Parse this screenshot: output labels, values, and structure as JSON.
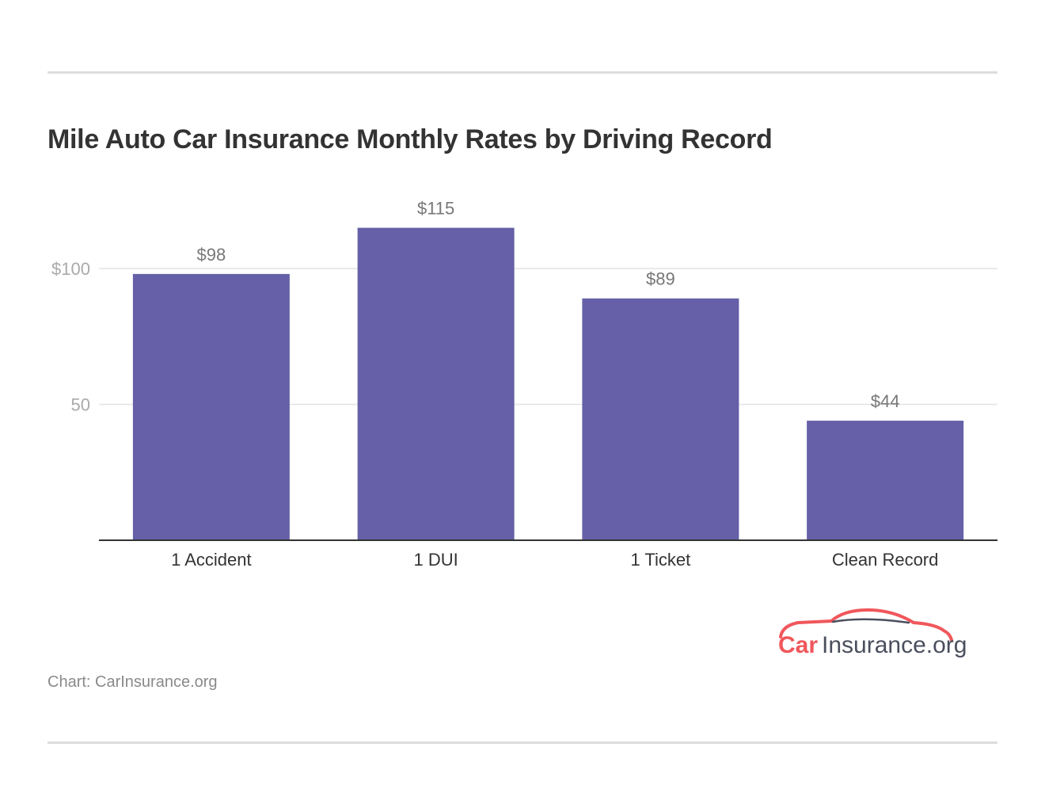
{
  "title": "Mile Auto Car Insurance Monthly Rates by Driving Record",
  "source": "Chart: CarInsurance.org",
  "logo": {
    "brand_part1": "Car",
    "brand_part2": "Insurance.org",
    "icon": "car-outline-icon"
  },
  "colors": {
    "bar": "#6560a7",
    "grid": "#e3e3e3",
    "axis": "#333333",
    "tick_text": "#aaaaaa",
    "label_text": "#777777",
    "category_text": "#333333",
    "title_text": "#333333",
    "logo_red": "#f0575b",
    "logo_dark": "#4a4f5d"
  },
  "chart_data": {
    "type": "bar",
    "title": "Mile Auto Car Insurance Monthly Rates by Driving Record",
    "categories": [
      "1 Accident",
      "1 DUI",
      "1 Ticket",
      "Clean Record"
    ],
    "values": [
      98,
      115,
      89,
      44
    ],
    "data_labels": [
      "$98",
      "$115",
      "$89",
      "$44"
    ],
    "yticks": [
      50,
      100
    ],
    "ytick_labels": [
      "50",
      "$100"
    ],
    "ylim": [
      0,
      115
    ],
    "xlabel": "",
    "ylabel": "",
    "grid": true,
    "legend": "none"
  }
}
